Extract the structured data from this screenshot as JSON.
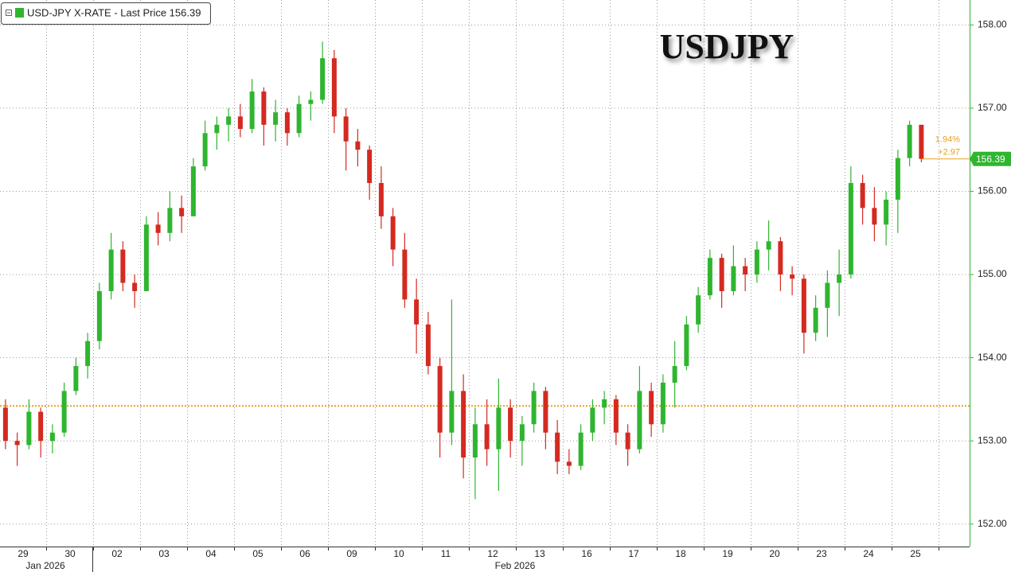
{
  "chart_data": {
    "type": "candlestick",
    "title": "USDJPY",
    "legend": "USD-JPY X-RATE - Last Price 156.39",
    "last_price": 156.39,
    "change_labels": [
      "1.94%",
      "+2.97"
    ],
    "reference_line": 153.42,
    "months": [
      "Jan 2026",
      "Feb 2026"
    ],
    "categories": [
      "29",
      "30",
      "02",
      "03",
      "04",
      "05",
      "06",
      "09",
      "10",
      "11",
      "12",
      "13",
      "16",
      "17",
      "18",
      "19",
      "20",
      "23",
      "24",
      "25"
    ],
    "up_color": "#2fb52f",
    "down_color": "#d42a20",
    "ylim": [
      151.73,
      158.3
    ],
    "yticks": [
      {
        "value": 152,
        "label": "152.00"
      },
      {
        "value": 153,
        "label": "153.00"
      },
      {
        "value": 154,
        "label": "154.00"
      },
      {
        "value": 155,
        "label": "155.00"
      },
      {
        "value": 156,
        "label": "156.00"
      },
      {
        "value": 157,
        "label": "157.00"
      },
      {
        "value": 158,
        "label": "158.00"
      }
    ],
    "grid": true,
    "ohlc": [
      [
        [
          153.4,
          153.5,
          152.9,
          153.0
        ],
        [
          153.0,
          153.1,
          152.7,
          152.95
        ],
        [
          152.95,
          153.5,
          152.9,
          153.35
        ],
        [
          153.35,
          153.4,
          152.8,
          153.0
        ]
      ],
      [
        [
          153.0,
          153.2,
          152.85,
          153.1
        ],
        [
          153.1,
          153.7,
          153.05,
          153.6
        ],
        [
          153.6,
          154.0,
          153.55,
          153.9
        ],
        [
          153.9,
          154.3,
          153.75,
          154.2
        ]
      ],
      [
        [
          154.2,
          154.9,
          154.1,
          154.8
        ],
        [
          154.8,
          155.5,
          154.7,
          155.3
        ],
        [
          155.3,
          155.4,
          154.8,
          154.9
        ],
        [
          154.9,
          155.0,
          154.6,
          154.8
        ]
      ],
      [
        [
          154.8,
          155.7,
          154.8,
          155.6
        ],
        [
          155.6,
          155.75,
          155.35,
          155.5
        ],
        [
          155.5,
          156.0,
          155.4,
          155.8
        ],
        [
          155.8,
          155.95,
          155.5,
          155.7
        ]
      ],
      [
        [
          155.7,
          156.4,
          155.7,
          156.3
        ],
        [
          156.3,
          156.85,
          156.25,
          156.7
        ],
        [
          156.7,
          156.9,
          156.5,
          156.8
        ],
        [
          156.8,
          157.0,
          156.6,
          156.9
        ]
      ],
      [
        [
          156.9,
          157.05,
          156.65,
          156.75
        ],
        [
          156.75,
          157.35,
          156.7,
          157.2
        ],
        [
          157.2,
          157.25,
          156.55,
          156.8
        ],
        [
          156.8,
          157.1,
          156.6,
          156.95
        ]
      ],
      [
        [
          156.95,
          157.0,
          156.55,
          156.7
        ],
        [
          156.7,
          157.15,
          156.65,
          157.05
        ],
        [
          157.05,
          157.2,
          156.85,
          157.1
        ],
        [
          157.1,
          157.8,
          157.05,
          157.6
        ]
      ],
      [
        [
          157.6,
          157.7,
          156.7,
          156.9
        ],
        [
          156.9,
          157.0,
          156.25,
          156.6
        ],
        [
          156.6,
          156.75,
          156.3,
          156.5
        ],
        [
          156.5,
          156.55,
          155.9,
          156.1
        ]
      ],
      [
        [
          156.1,
          156.3,
          155.55,
          155.7
        ],
        [
          155.7,
          155.8,
          155.1,
          155.3
        ],
        [
          155.3,
          155.5,
          154.6,
          154.7
        ],
        [
          154.7,
          154.95,
          154.05,
          154.4
        ]
      ],
      [
        [
          154.4,
          154.55,
          153.8,
          153.9
        ],
        [
          153.9,
          154.0,
          152.8,
          153.1
        ],
        [
          153.1,
          154.7,
          152.95,
          153.6
        ],
        [
          153.6,
          153.8,
          152.55,
          152.8
        ]
      ],
      [
        [
          152.8,
          153.4,
          152.3,
          153.2
        ],
        [
          153.2,
          153.5,
          152.7,
          152.9
        ],
        [
          152.9,
          153.75,
          152.4,
          153.4
        ],
        [
          153.4,
          153.5,
          152.8,
          153.0
        ]
      ],
      [
        [
          153.0,
          153.3,
          152.7,
          153.2
        ],
        [
          153.2,
          153.7,
          153.1,
          153.6
        ],
        [
          153.6,
          153.65,
          152.9,
          153.1
        ],
        [
          153.1,
          153.25,
          152.6,
          152.75
        ]
      ],
      [
        [
          152.75,
          152.9,
          152.6,
          152.7
        ],
        [
          152.7,
          153.2,
          152.65,
          153.1
        ],
        [
          153.1,
          153.5,
          153.0,
          153.4
        ],
        [
          153.4,
          153.6,
          153.2,
          153.5
        ]
      ],
      [
        [
          153.5,
          153.55,
          152.95,
          153.1
        ],
        [
          153.1,
          153.2,
          152.7,
          152.9
        ],
        [
          152.9,
          153.9,
          152.85,
          153.6
        ],
        [
          153.6,
          153.7,
          153.05,
          153.2
        ]
      ],
      [
        [
          153.2,
          153.8,
          153.1,
          153.7
        ],
        [
          153.7,
          154.2,
          153.4,
          153.9
        ],
        [
          153.9,
          154.5,
          153.85,
          154.4
        ],
        [
          154.4,
          154.85,
          154.3,
          154.75
        ]
      ],
      [
        [
          154.75,
          155.3,
          154.7,
          155.2
        ],
        [
          155.2,
          155.25,
          154.6,
          154.8
        ],
        [
          154.8,
          155.35,
          154.75,
          155.1
        ],
        [
          155.1,
          155.2,
          154.8,
          155.0
        ]
      ],
      [
        [
          155.0,
          155.4,
          154.9,
          155.3
        ],
        [
          155.3,
          155.65,
          155.05,
          155.4
        ],
        [
          155.4,
          155.45,
          154.8,
          155.0
        ],
        [
          155.0,
          155.1,
          154.75,
          154.95
        ]
      ],
      [
        [
          154.95,
          155.0,
          154.05,
          154.3
        ],
        [
          154.3,
          154.75,
          154.2,
          154.6
        ],
        [
          154.6,
          155.05,
          154.25,
          154.9
        ],
        [
          154.9,
          155.3,
          154.5,
          155.0
        ]
      ],
      [
        [
          155.0,
          156.3,
          154.95,
          156.1
        ],
        [
          156.1,
          156.2,
          155.6,
          155.8
        ],
        [
          155.8,
          156.05,
          155.4,
          155.6
        ],
        [
          155.6,
          156.0,
          155.35,
          155.9
        ]
      ],
      [
        [
          155.9,
          156.5,
          155.5,
          156.4
        ],
        [
          156.4,
          156.85,
          156.3,
          156.8
        ],
        [
          156.8,
          156.8,
          156.35,
          156.39
        ]
      ]
    ]
  }
}
